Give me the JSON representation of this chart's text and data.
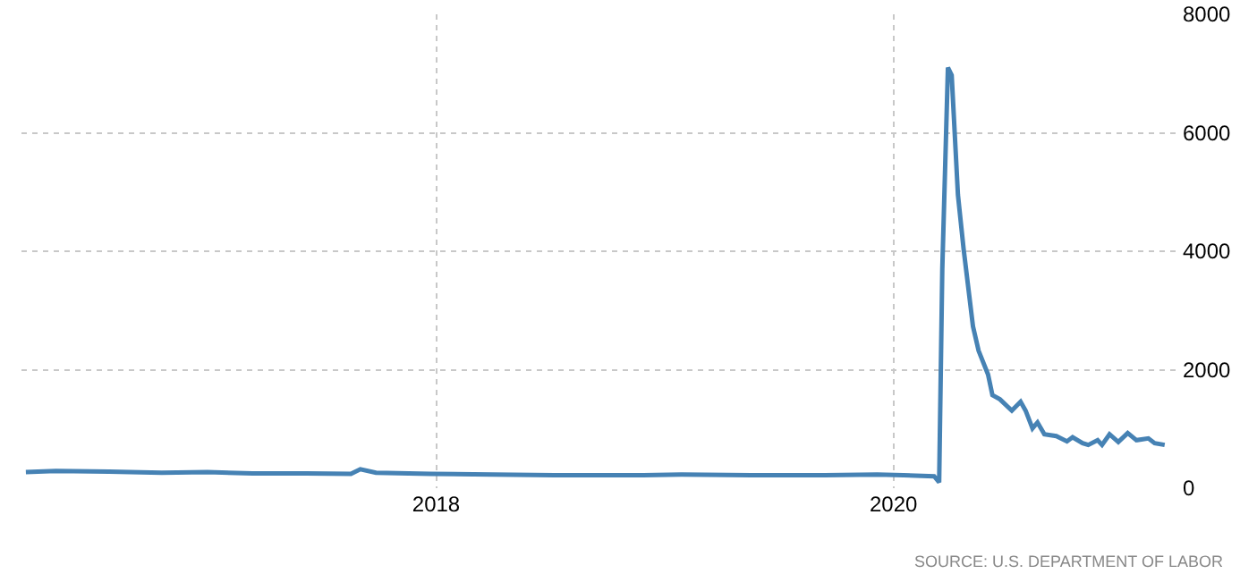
{
  "chart_data": {
    "type": "line",
    "x": [
      "2016-03-17",
      "2016-05-04",
      "2016-07-28",
      "2016-10-20",
      "2017-01-01",
      "2017-03-14",
      "2017-06-07",
      "2017-08-18",
      "2017-09-02",
      "2017-09-27",
      "2017-12-23",
      "2018-04-01",
      "2018-07-09",
      "2018-11-28",
      "2019-01-27",
      "2019-05-19",
      "2019-09-13",
      "2019-12-06",
      "2020-01-17",
      "2020-03-06",
      "2020-03-14",
      "2020-03-19",
      "2020-03-28",
      "2020-04-03",
      "2020-04-13",
      "2020-04-22",
      "2020-05-07",
      "2020-05-16",
      "2020-05-31",
      "2020-06-07",
      "2020-06-19",
      "2020-07-08",
      "2020-07-22",
      "2020-07-30",
      "2020-08-10",
      "2020-08-18",
      "2020-08-29",
      "2020-09-17",
      "2020-10-04",
      "2020-10-13",
      "2020-10-29",
      "2020-11-07",
      "2020-11-22",
      "2020-11-29",
      "2020-12-11",
      "2020-12-25",
      "2021-01-09",
      "2021-01-23",
      "2021-02-11",
      "2021-02-21",
      "2021-03-09"
    ],
    "series": [
      {
        "color": "#4682b4",
        "values": [
          270,
          290,
          280,
          260,
          270,
          250,
          250,
          240,
          320,
          260,
          240,
          230,
          220,
          220,
          230,
          220,
          220,
          230,
          220,
          200,
          100,
          3700,
          7100,
          6970,
          4950,
          4040,
          2730,
          2320,
          1920,
          1570,
          1500,
          1310,
          1460,
          1310,
          1010,
          1110,
          910,
          880,
          790,
          860,
          760,
          730,
          810,
          730,
          910,
          780,
          930,
          810,
          840,
          760,
          730
        ]
      }
    ],
    "xlim": [
      "2016-03-10",
      "2021-04-04"
    ],
    "xticks": [
      {
        "value": "2018-01-01",
        "label": "2018"
      },
      {
        "value": "2020-01-01",
        "label": "2020"
      }
    ],
    "ylim": [
      0,
      8000
    ],
    "yticks": [
      0,
      2000,
      4000,
      6000,
      8000
    ],
    "grid": true,
    "marker": "none",
    "line_style": "solid",
    "annotations": [
      "SOURCE: U.S. DEPARTMENT OF LABOR"
    ]
  }
}
